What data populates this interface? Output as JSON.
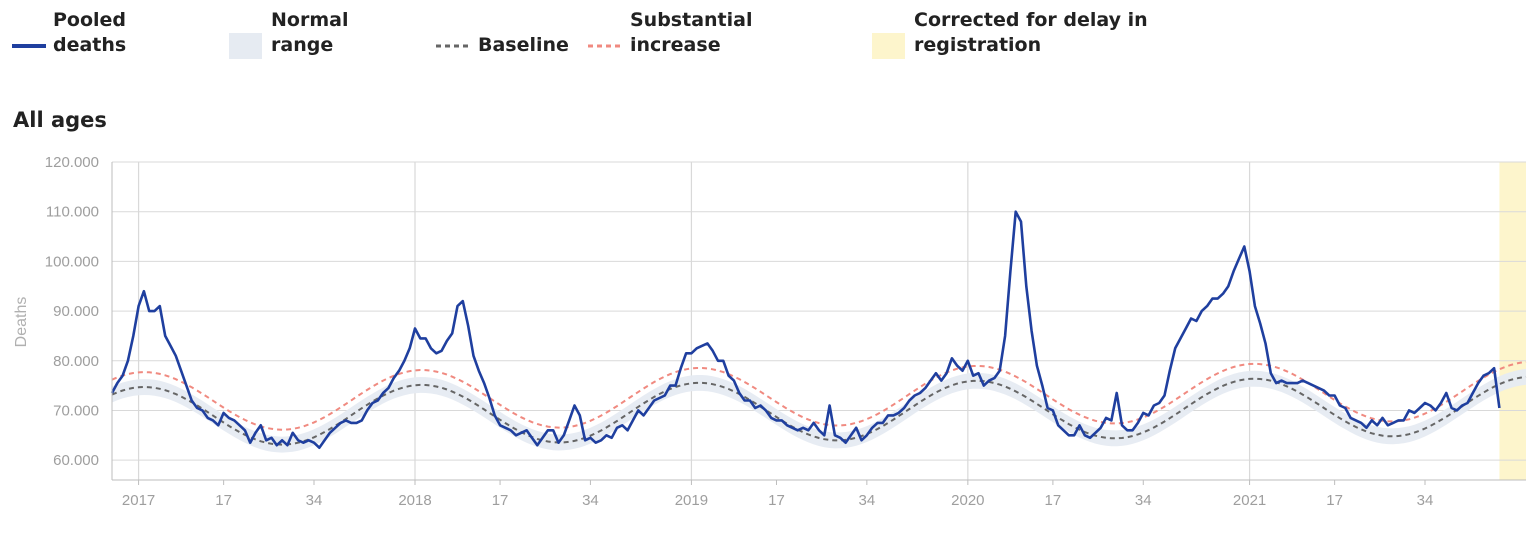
{
  "legend": {
    "pooled": "Pooled\ndeaths",
    "normal": "Normal\nrange",
    "baseline": "Baseline",
    "substantial": "Substantial\nincrease",
    "corrected": "Corrected for delay in\nregistration"
  },
  "colors": {
    "pooled": "#1f3f9f",
    "normal": "#e6ebf2",
    "baseline": "#666666",
    "substantial": "#f08a80",
    "corrected": "#fdf5cc",
    "grid": "#d9d9d9"
  },
  "chart_data": {
    "type": "line",
    "title": "All ages",
    "xlabel": "",
    "ylabel": "Deaths",
    "ylim": [
      56000,
      120000
    ],
    "y_ticks": [
      60000,
      70000,
      80000,
      90000,
      100000,
      110000,
      120000
    ],
    "y_tick_labels": [
      "60.000",
      "70.000",
      "80.000",
      "90.000",
      "100.000",
      "110.000",
      "120.000"
    ],
    "x_ticks": [
      {
        "label": "2017",
        "week": 1
      },
      {
        "label": "17",
        "week": 17
      },
      {
        "label": "34",
        "week": 34
      },
      {
        "label": "2018",
        "week": 53
      },
      {
        "label": "17",
        "week": 69
      },
      {
        "label": "34",
        "week": 86
      },
      {
        "label": "2019",
        "week": 105
      },
      {
        "label": "17",
        "week": 121
      },
      {
        "label": "34",
        "week": 138
      },
      {
        "label": "2020",
        "week": 157
      },
      {
        "label": "17",
        "week": 173
      },
      {
        "label": "34",
        "week": 190
      },
      {
        "label": "2021",
        "week": 210
      },
      {
        "label": "17",
        "week": 226
      },
      {
        "label": "34",
        "week": 243
      }
    ],
    "x_range": [
      -4,
      262
    ],
    "corrected_weeks": [
      257,
      262
    ],
    "grid": true,
    "legend_position": "top",
    "baseline": {
      "mean": 68800,
      "amplitude": 5900,
      "peak_week": 2,
      "period": 52.2,
      "trend_per_week": 8
    },
    "normal_range_halfwidth": 1600,
    "substantial_offset": 3000,
    "series": [
      {
        "name": "Pooled deaths",
        "start_week": -4,
        "values": [
          73500,
          75500,
          77000,
          80000,
          85000,
          91000,
          94000,
          90000,
          90000,
          91000,
          85000,
          83000,
          81000,
          78000,
          75000,
          72000,
          70500,
          70000,
          68500,
          68000,
          67000,
          69500,
          68500,
          68000,
          67000,
          66000,
          63500,
          65500,
          67000,
          64000,
          64500,
          63000,
          64000,
          63000,
          65500,
          64000,
          63500,
          64000,
          63500,
          62500,
          64000,
          65500,
          66500,
          67500,
          68000,
          67500,
          67500,
          68000,
          70000,
          71500,
          72000,
          73500,
          74500,
          76500,
          78000,
          80000,
          82500,
          86500,
          84500,
          84500,
          82500,
          81500,
          82000,
          84000,
          85500,
          91000,
          92000,
          87000,
          81000,
          78000,
          75500,
          72500,
          69000,
          67000,
          66500,
          66000,
          65000,
          65500,
          66000,
          64500,
          63000,
          64500,
          66000,
          66000,
          63500,
          65000,
          68000,
          71000,
          69000,
          64000,
          64500,
          63500,
          64000,
          65000,
          64500,
          66500,
          67000,
          66000,
          68000,
          70000,
          69000,
          70500,
          72000,
          72500,
          73000,
          75000,
          75000,
          78500,
          81500,
          81500,
          82500,
          83000,
          83500,
          82000,
          80000,
          80000,
          77000,
          76000,
          73500,
          72000,
          72000,
          70500,
          71000,
          70000,
          68500,
          68000,
          68000,
          67000,
          66500,
          66000,
          66500,
          66000,
          67500,
          66000,
          65000,
          71000,
          65000,
          64500,
          63500,
          65000,
          66500,
          64000,
          65000,
          66500,
          67500,
          67500,
          69000,
          69000,
          69500,
          70500,
          72000,
          73000,
          73500,
          74500,
          76000,
          77500,
          76000,
          77500,
          80500,
          79000,
          78000,
          80000,
          77000,
          77500,
          75000,
          76000,
          76500,
          78000,
          85000,
          98000,
          110000,
          108000,
          95000,
          86000,
          79000,
          75000,
          70500,
          70000,
          67000,
          66000,
          65000,
          65000,
          67000,
          65000,
          64500,
          65500,
          66500,
          68500,
          68000,
          73500,
          67000,
          66000,
          66000,
          67500,
          69500,
          69000,
          71000,
          71500,
          73000,
          78000,
          82500,
          84500,
          86500,
          88500,
          88000,
          90000,
          91000,
          92500,
          92500,
          93500,
          95000,
          98000,
          100500,
          103000,
          98000,
          91000,
          87500,
          83500,
          77500,
          75500,
          76000,
          75500,
          75500,
          75500,
          76000,
          75500,
          75000,
          74500,
          74000,
          73000,
          73000,
          71000,
          70500,
          68500,
          68000,
          67500,
          66500,
          68000,
          67000,
          68500,
          67000,
          67500,
          68000,
          68000,
          70000,
          69500,
          70500,
          71500,
          71000,
          70000,
          71500,
          73500,
          70500,
          70000,
          71000,
          71500,
          73500,
          75500,
          77000,
          77500,
          78500,
          70500
        ]
      }
    ]
  }
}
